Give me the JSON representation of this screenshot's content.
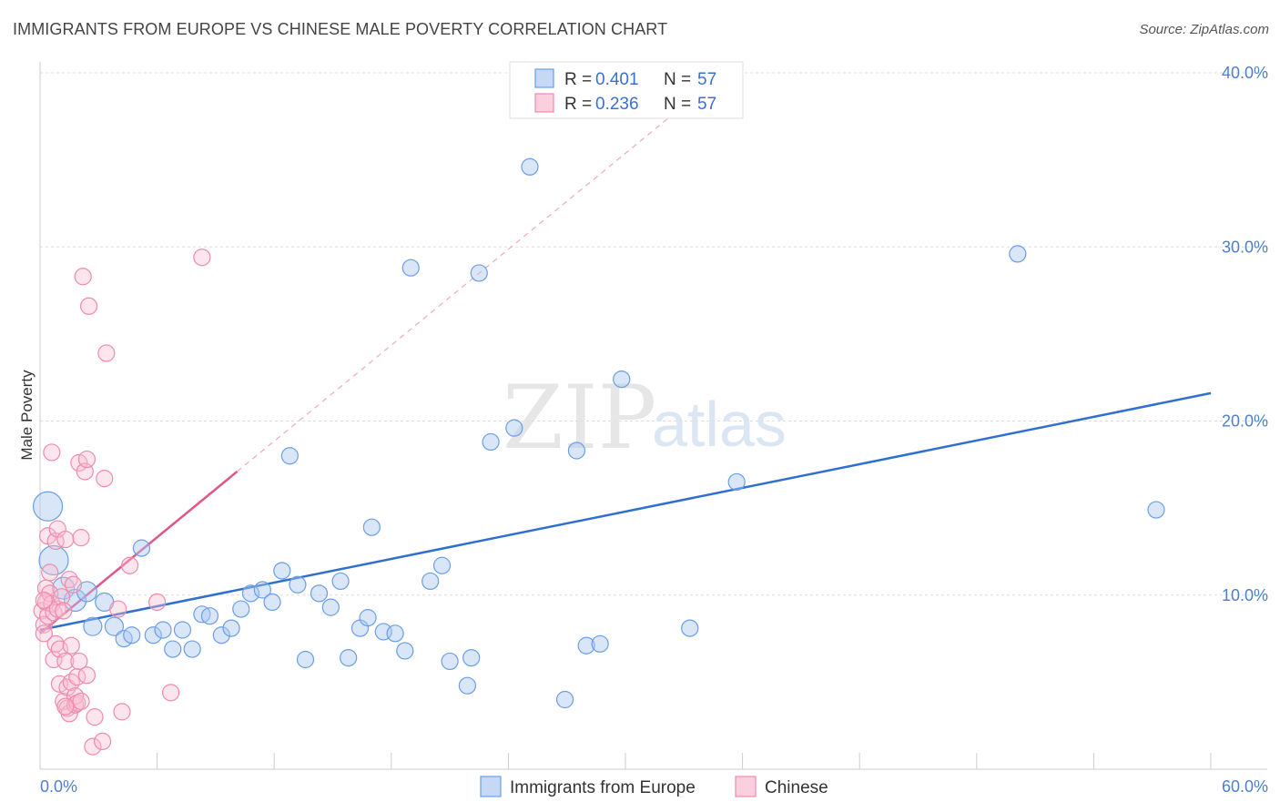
{
  "header": {
    "title": "IMMIGRANTS FROM EUROPE VS CHINESE MALE POVERTY CORRELATION CHART",
    "source": "Source: ZipAtlas.com"
  },
  "watermark": {
    "zip": "ZIP",
    "atlas": "atlas"
  },
  "legend": {
    "r_label": "R =",
    "n_label": "N =",
    "entries": [
      {
        "r": "0.401",
        "n": "57"
      },
      {
        "r": "0.236",
        "n": "57"
      }
    ]
  },
  "bottom_legend": [
    "Immigrants from Europe",
    "Chinese"
  ],
  "chart_data": {
    "type": "scatter",
    "ylabel": "Male Poverty",
    "xlim": [
      0,
      60
    ],
    "ylim": [
      0,
      40
    ],
    "x_tick_labels": [
      "0.0%",
      "60.0%"
    ],
    "y_ticks": [
      10,
      20,
      30,
      40
    ],
    "y_tick_labels": [
      "10.0%",
      "20.0%",
      "30.0%",
      "40.0%"
    ],
    "grid": "horizontal dashed",
    "legend_position": "top-center",
    "colors": {
      "europe": "#6a9ee6",
      "chinese": "#f08aaa",
      "europe_line": "#2f6fce",
      "chinese_line": "#e0558a"
    },
    "series": [
      {
        "name": "Immigrants from Europe",
        "r": 0.401,
        "n": 57,
        "trend": {
          "x": [
            0,
            60
          ],
          "y": [
            8.0,
            21.6
          ]
        },
        "points": [
          [
            0.4,
            15.1,
            16
          ],
          [
            0.7,
            12.0,
            16
          ],
          [
            1.2,
            10.4,
            12
          ],
          [
            1.8,
            9.7,
            12
          ],
          [
            2.4,
            10.2,
            11
          ],
          [
            2.7,
            8.2,
            10
          ],
          [
            3.3,
            9.6,
            10
          ],
          [
            3.8,
            8.2,
            10
          ],
          [
            4.3,
            7.5,
            9
          ],
          [
            4.7,
            7.7,
            9
          ],
          [
            5.2,
            12.7,
            9
          ],
          [
            5.8,
            7.7,
            9
          ],
          [
            6.3,
            8.0,
            9
          ],
          [
            6.8,
            6.9,
            9
          ],
          [
            7.3,
            8.0,
            9
          ],
          [
            7.8,
            6.9,
            9
          ],
          [
            8.3,
            8.9,
            9
          ],
          [
            8.7,
            8.8,
            9
          ],
          [
            9.3,
            7.7,
            9
          ],
          [
            9.8,
            8.1,
            9
          ],
          [
            10.3,
            9.2,
            9
          ],
          [
            10.8,
            10.1,
            9
          ],
          [
            11.4,
            10.3,
            9
          ],
          [
            11.9,
            9.6,
            9
          ],
          [
            12.4,
            11.4,
            9
          ],
          [
            12.8,
            18.0,
            9
          ],
          [
            13.2,
            10.6,
            9
          ],
          [
            13.6,
            6.3,
            9
          ],
          [
            14.3,
            10.1,
            9
          ],
          [
            14.9,
            9.3,
            9
          ],
          [
            15.4,
            10.8,
            9
          ],
          [
            15.8,
            6.4,
            9
          ],
          [
            16.4,
            8.1,
            9
          ],
          [
            16.8,
            8.7,
            9
          ],
          [
            17.0,
            13.9,
            9
          ],
          [
            17.6,
            7.9,
            9
          ],
          [
            18.2,
            7.8,
            9
          ],
          [
            18.7,
            6.8,
            9
          ],
          [
            19.0,
            28.8,
            9
          ],
          [
            20.0,
            10.8,
            9
          ],
          [
            20.6,
            11.7,
            9
          ],
          [
            21.0,
            6.2,
            9
          ],
          [
            21.9,
            4.8,
            9
          ],
          [
            22.1,
            6.4,
            9
          ],
          [
            22.5,
            28.5,
            9
          ],
          [
            23.1,
            18.8,
            9
          ],
          [
            24.3,
            19.6,
            9
          ],
          [
            25.1,
            34.6,
            9
          ],
          [
            26.9,
            4.0,
            9
          ],
          [
            27.5,
            18.3,
            9
          ],
          [
            28.0,
            7.1,
            9
          ],
          [
            28.7,
            7.2,
            9
          ],
          [
            29.8,
            22.4,
            9
          ],
          [
            33.3,
            8.1,
            9
          ],
          [
            35.7,
            16.5,
            9
          ],
          [
            50.1,
            29.6,
            9
          ],
          [
            57.2,
            14.9,
            9
          ]
        ]
      },
      {
        "name": "Chinese",
        "r": 0.236,
        "n": 57,
        "trend": {
          "x": [
            0,
            10.1
          ],
          "y": [
            7.8,
            17.1
          ]
        },
        "trend_ext": {
          "x": [
            10.1,
            33.4
          ],
          "y": [
            17.1,
            38.5
          ]
        },
        "points": [
          [
            0.1,
            9.1,
            9
          ],
          [
            0.2,
            8.3,
            9
          ],
          [
            0.2,
            7.8,
            9
          ],
          [
            0.3,
            10.4,
            9
          ],
          [
            0.3,
            9.6,
            9
          ],
          [
            0.4,
            13.4,
            9
          ],
          [
            0.4,
            8.8,
            9
          ],
          [
            0.5,
            11.3,
            9
          ],
          [
            0.5,
            10.1,
            9
          ],
          [
            0.6,
            18.2,
            9
          ],
          [
            0.6,
            9.5,
            9
          ],
          [
            0.7,
            6.3,
            9
          ],
          [
            0.7,
            9.0,
            9
          ],
          [
            0.8,
            7.2,
            9
          ],
          [
            0.8,
            13.1,
            9
          ],
          [
            0.9,
            9.2,
            9
          ],
          [
            0.9,
            13.8,
            9
          ],
          [
            1.0,
            4.9,
            9
          ],
          [
            1.0,
            6.9,
            9
          ],
          [
            1.1,
            9.9,
            9
          ],
          [
            1.2,
            3.9,
            9
          ],
          [
            1.2,
            9.1,
            9
          ],
          [
            1.3,
            13.2,
            9
          ],
          [
            1.3,
            6.2,
            9
          ],
          [
            1.4,
            4.7,
            9
          ],
          [
            1.4,
            3.5,
            9
          ],
          [
            1.5,
            10.9,
            9
          ],
          [
            1.5,
            3.2,
            9
          ],
          [
            1.6,
            7.1,
            9
          ],
          [
            1.6,
            5.0,
            9
          ],
          [
            1.7,
            10.6,
            9
          ],
          [
            1.8,
            3.7,
            9
          ],
          [
            1.8,
            4.2,
            9
          ],
          [
            1.9,
            5.3,
            9
          ],
          [
            1.9,
            3.8,
            9
          ],
          [
            2.0,
            6.2,
            9
          ],
          [
            2.0,
            17.6,
            9
          ],
          [
            2.1,
            3.9,
            9
          ],
          [
            2.1,
            13.3,
            9
          ],
          [
            2.2,
            28.3,
            9
          ],
          [
            2.3,
            17.1,
            9
          ],
          [
            2.4,
            5.4,
            9
          ],
          [
            2.4,
            17.8,
            9
          ],
          [
            2.5,
            26.6,
            9
          ],
          [
            2.7,
            1.3,
            9
          ],
          [
            2.8,
            3.0,
            9
          ],
          [
            3.2,
            1.6,
            9
          ],
          [
            3.3,
            16.7,
            9
          ],
          [
            3.4,
            23.9,
            9
          ],
          [
            4.0,
            9.2,
            9
          ],
          [
            4.2,
            3.3,
            9
          ],
          [
            4.6,
            11.7,
            9
          ],
          [
            6.0,
            9.6,
            9
          ],
          [
            6.7,
            4.4,
            9
          ],
          [
            8.3,
            29.4,
            9
          ],
          [
            0.2,
            9.7,
            9
          ],
          [
            1.3,
            3.6,
            9
          ]
        ]
      }
    ]
  }
}
